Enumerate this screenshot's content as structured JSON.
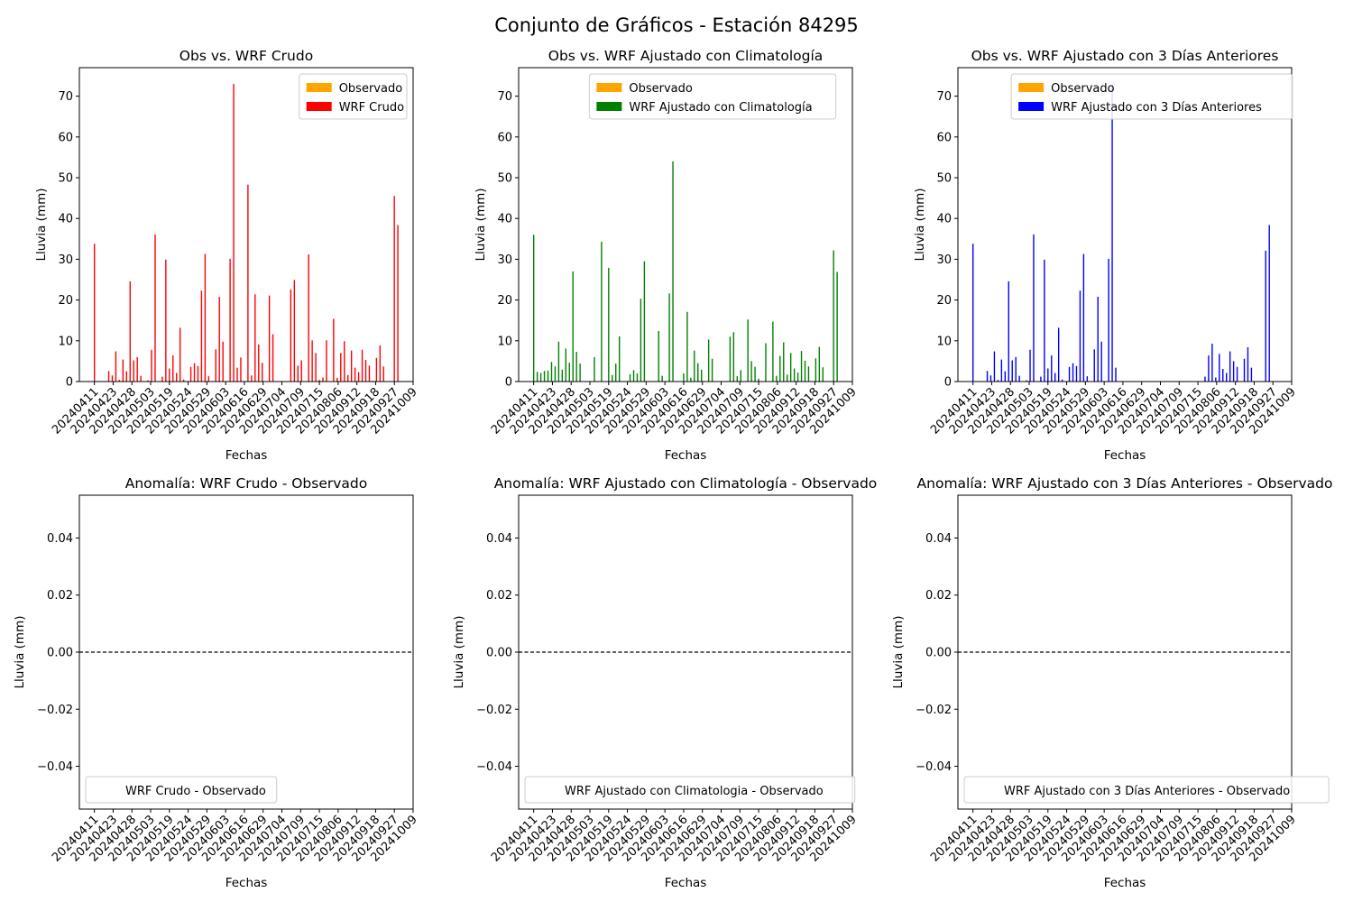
{
  "figure": {
    "title": "Conjunto de Gráficos - Estación 84295"
  },
  "colors": {
    "observado": "#ffa500",
    "wrf_crudo": "#ff0000",
    "wrf_clima": "#008000",
    "wrf_3dias": "#0000ff",
    "zero_line": "#000000"
  },
  "ticks": [
    "20240411",
    "20240423",
    "20240428",
    "20240503",
    "20240519",
    "20240524",
    "20240529",
    "20240603",
    "20240616",
    "20240629",
    "20240704",
    "20240709",
    "20240715",
    "20240806",
    "20240912",
    "20240918",
    "20240927",
    "20241009"
  ],
  "chart_data": [
    {
      "type": "bar",
      "title": "Obs vs. WRF Crudo",
      "xlabel": "Fechas",
      "ylabel": "Lluvia (mm)",
      "ylim": [
        0,
        77
      ],
      "yticks": [
        0,
        10,
        20,
        30,
        40,
        50,
        60,
        70
      ],
      "legend_position": "upper right",
      "series": [
        {
          "name": "Observado",
          "color_key": "observado",
          "values": []
        },
        {
          "name": "WRF Crudo",
          "color_key": "wrf_crudo",
          "values": [
            33.8,
            0,
            0,
            0,
            2.6,
            1.5,
            7.4,
            0.4,
            5.4,
            2.5,
            24.6,
            5.2,
            6.0,
            1.4,
            0,
            0.3,
            7.8,
            36.1,
            0,
            1.2,
            29.9,
            3.2,
            6.4,
            2.1,
            13.2,
            0.5,
            0,
            3.6,
            4.5,
            3.8,
            22.3,
            31.3,
            1.3,
            0,
            7.9,
            20.8,
            9.8,
            0,
            30.1,
            73.0,
            3.4,
            5.9,
            0,
            48.3,
            1.5,
            21.4,
            9.1,
            4.6,
            0,
            21.1,
            11.6,
            0,
            0,
            0,
            0,
            22.6,
            24.9,
            3.9,
            5.2,
            0,
            31.2,
            10.1,
            7.0,
            0.4,
            1.0,
            10.1,
            0,
            15.4,
            0.9,
            7.0,
            9.9,
            1.6,
            7.6,
            3.4,
            2.3,
            7.8,
            5.3,
            3.9,
            0.2,
            5.8,
            8.9,
            3.7,
            0,
            0,
            45.5,
            38.4
          ]
        }
      ]
    },
    {
      "type": "bar",
      "title": "Obs vs. WRF Ajustado con Climatología",
      "xlabel": "Fechas",
      "ylabel": "Lluvia (mm)",
      "ylim": [
        0,
        77
      ],
      "yticks": [
        0,
        10,
        20,
        30,
        40,
        50,
        60,
        70
      ],
      "legend_position": "upper center",
      "series": [
        {
          "name": "Observado",
          "color_key": "observado",
          "values": []
        },
        {
          "name": "WRF Ajustado con Climatología",
          "color_key": "wrf_clima",
          "values": [
            36.0,
            2.4,
            2.1,
            2.6,
            2.7,
            4.8,
            3.7,
            9.8,
            2.9,
            8.1,
            4.6,
            27.0,
            7.3,
            4.4,
            0,
            0,
            0,
            6.0,
            0,
            34.3,
            0,
            27.9,
            1.6,
            4.4,
            11.1,
            0,
            0,
            1.8,
            2.8,
            2.0,
            20.3,
            29.5,
            0,
            0,
            0,
            12.4,
            1.4,
            0,
            21.6,
            54.0,
            0,
            0,
            2.0,
            17.1,
            0.9,
            7.6,
            4.5,
            2.9,
            0,
            10.3,
            5.6,
            0,
            0,
            0,
            0,
            11.0,
            12.1,
            1.3,
            2.8,
            0,
            15.2,
            5.0,
            3.6,
            0.7,
            0,
            9.4,
            0,
            14.7,
            1.4,
            6.3,
            9.6,
            1.7,
            7.0,
            3.2,
            2.2,
            7.5,
            5.1,
            3.7,
            0,
            5.7,
            8.5,
            3.5,
            0,
            0,
            32.2,
            26.9
          ]
        }
      ]
    },
    {
      "type": "bar",
      "title": "Obs vs. WRF Ajustado con 3 Días Anteriores",
      "xlabel": "Fechas",
      "ylabel": "Lluvia (mm)",
      "ylim": [
        0,
        77
      ],
      "yticks": [
        0,
        10,
        20,
        30,
        40,
        50,
        60,
        70
      ],
      "legend_position": "upper center",
      "series": [
        {
          "name": "Observado",
          "color_key": "observado",
          "values": []
        },
        {
          "name": "WRF Ajustado con 3 Días Anteriores",
          "color_key": "wrf_3dias",
          "values": [
            33.8,
            0,
            0,
            0,
            2.6,
            1.5,
            7.4,
            0.4,
            5.4,
            2.5,
            24.6,
            5.2,
            6.0,
            1.4,
            0,
            0.3,
            7.8,
            36.1,
            0,
            1.2,
            29.9,
            3.2,
            6.4,
            2.1,
            13.2,
            0.5,
            0,
            3.6,
            4.5,
            3.8,
            22.3,
            31.3,
            1.3,
            0,
            7.9,
            20.8,
            9.8,
            0,
            30.1,
            73.0,
            3.4,
            0,
            0,
            0,
            0,
            0,
            0,
            0,
            0,
            0,
            0,
            0,
            0,
            0,
            0,
            0,
            0,
            0,
            0,
            0,
            0,
            0,
            0,
            0,
            0,
            1.2,
            6.4,
            9.3,
            1.0,
            6.8,
            3.1,
            2.1,
            7.4,
            5.0,
            3.6,
            0,
            5.6,
            8.4,
            3.4,
            0,
            0,
            0,
            32.1,
            38.4,
            0,
            0
          ]
        }
      ]
    },
    {
      "type": "line",
      "title": "Anomalía: WRF Crudo - Observado",
      "xlabel": "Fechas",
      "ylabel": "Lluvia (mm)",
      "ylim": [
        -0.055,
        0.055
      ],
      "yticks": [
        -0.04,
        -0.02,
        0.0,
        0.02,
        0.04
      ],
      "legend_position": "lower left",
      "series": [
        {
          "name": "WRF Crudo - Observado",
          "values": []
        }
      ]
    },
    {
      "type": "line",
      "title": "Anomalía: WRF Ajustado con Climatología - Observado",
      "xlabel": "Fechas",
      "ylabel": "Lluvia (mm)",
      "ylim": [
        -0.055,
        0.055
      ],
      "yticks": [
        -0.04,
        -0.02,
        0.0,
        0.02,
        0.04
      ],
      "legend_position": "lower left",
      "series": [
        {
          "name": "WRF Ajustado con Climatologia - Observado",
          "values": []
        }
      ]
    },
    {
      "type": "line",
      "title": "Anomalía: WRF Ajustado con 3 Días Anteriores - Observado",
      "xlabel": "Fechas",
      "ylabel": "Lluvia (mm)",
      "ylim": [
        -0.055,
        0.055
      ],
      "yticks": [
        -0.04,
        -0.02,
        0.0,
        0.02,
        0.04
      ],
      "legend_position": "lower left",
      "series": [
        {
          "name": "WRF Ajustado con 3 Días Anteriores - Observado",
          "values": []
        }
      ]
    }
  ]
}
